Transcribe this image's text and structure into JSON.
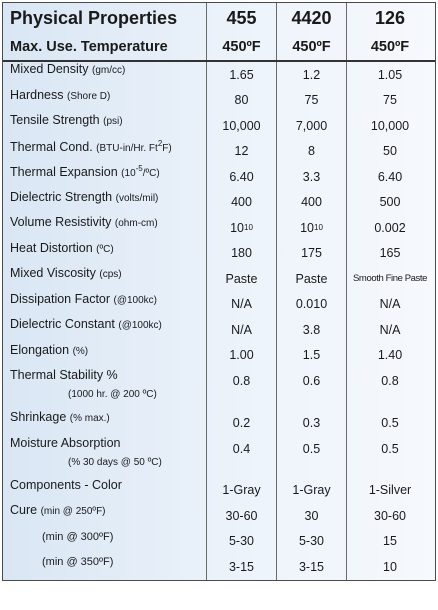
{
  "table": {
    "header": [
      [
        "Physical Properties",
        "455",
        "4420",
        "126"
      ],
      [
        "Max. Use. Temperature",
        "450ºF",
        "450ºF",
        "450ºF"
      ]
    ],
    "rows": [
      {
        "label": [
          {
            "text": "Mixed Density ",
            "style": "main"
          },
          {
            "text": "(gm/cc)",
            "style": "small"
          }
        ],
        "values": [
          "1.65",
          "1.2",
          "1.05"
        ]
      },
      {
        "label": [
          {
            "text": "Hardness ",
            "style": "main"
          },
          {
            "text": "(Shore D)",
            "style": "small"
          }
        ],
        "values": [
          "80",
          "75",
          "75"
        ]
      },
      {
        "label": [
          {
            "text": "Tensile Strength ",
            "style": "main"
          },
          {
            "text": "(psi)",
            "style": "small"
          }
        ],
        "values": [
          "10,000",
          "7,000",
          "10,000"
        ]
      },
      {
        "label": [
          {
            "text": "Thermal Cond. ",
            "style": "main"
          },
          {
            "text": "(BTU-in/Hr. Ft",
            "style": "small"
          },
          {
            "text": "2",
            "style": "sup"
          },
          {
            "text": "F)",
            "style": "small"
          }
        ],
        "values": [
          "12",
          "8",
          "50"
        ]
      },
      {
        "label": [
          {
            "text": "Thermal Expansion ",
            "style": "main"
          },
          {
            "text": "(10",
            "style": "small"
          },
          {
            "text": "-5",
            "style": "sup"
          },
          {
            "text": "/ºC)",
            "style": "small"
          }
        ],
        "values": [
          "6.40",
          "3.3",
          "6.40"
        ]
      },
      {
        "label": [
          {
            "text": "Dielectric Strength ",
            "style": "main"
          },
          {
            "text": "(volts/mil)",
            "style": "small"
          }
        ],
        "values": [
          "400",
          "400",
          "500"
        ]
      },
      {
        "label": [
          {
            "text": "Volume Resistivity ",
            "style": "main"
          },
          {
            "text": "(ohm-cm)",
            "style": "small"
          }
        ],
        "values": [
          [
            {
              "text": "10",
              "style": "main"
            },
            {
              "text": "10",
              "style": "sup"
            }
          ],
          [
            {
              "text": "10",
              "style": "main"
            },
            {
              "text": "10",
              "style": "sup"
            }
          ],
          "0.002"
        ]
      },
      {
        "label": [
          {
            "text": "Heat Distortion ",
            "style": "main"
          },
          {
            "text": "(ºC)",
            "style": "small"
          }
        ],
        "values": [
          "180",
          "175",
          "165"
        ]
      },
      {
        "label": [
          {
            "text": "Mixed Viscosity ",
            "style": "main"
          },
          {
            "text": "(cps)",
            "style": "small"
          }
        ],
        "values": [
          "Paste",
          "Paste",
          [
            {
              "text": "Smooth Fine Paste",
              "style": "tight"
            }
          ]
        ]
      },
      {
        "label": [
          {
            "text": "Dissipation Factor ",
            "style": "main"
          },
          {
            "text": "(@100kc)",
            "style": "small"
          }
        ],
        "values": [
          "N/A",
          "0.010",
          "N/A"
        ]
      },
      {
        "label": [
          {
            "text": "Dielectric Constant ",
            "style": "main"
          },
          {
            "text": "(@100kc)",
            "style": "small"
          }
        ],
        "values": [
          "N/A",
          "3.8",
          "N/A"
        ]
      },
      {
        "label": [
          {
            "text": "Elongation ",
            "style": "main"
          },
          {
            "text": "(%)",
            "style": "small"
          }
        ],
        "values": [
          "1.00",
          "1.5",
          "1.40"
        ]
      },
      {
        "label": [
          {
            "text": "Thermal Stability %",
            "style": "main"
          }
        ],
        "sublabel": [
          {
            "text": "(1000 hr. @ 200 ºC)",
            "style": "small"
          }
        ],
        "values": [
          "0.8",
          "0.6",
          "0.8"
        ]
      },
      {
        "label": [
          {
            "text": "Shrinkage ",
            "style": "main"
          },
          {
            "text": "(% max.)",
            "style": "small"
          }
        ],
        "values": [
          "0.2",
          "0.3",
          "0.5"
        ]
      },
      {
        "label": [
          {
            "text": "Moisture Absorption",
            "style": "main"
          }
        ],
        "sublabel": [
          {
            "text": "(% 30 days @ 50 ºC)",
            "style": "small"
          }
        ],
        "values": [
          "0.4",
          "0.5",
          "0.5"
        ]
      },
      {
        "label": [
          {
            "text": "Components - Color",
            "style": "main"
          }
        ],
        "values": [
          "1-Gray",
          "1-Gray",
          "1-Silver"
        ]
      },
      {
        "label": [
          {
            "text": "Cure ",
            "style": "main"
          },
          {
            "text": "(min @ 250ºF)",
            "style": "small"
          }
        ],
        "values": [
          "30-60",
          "30",
          "30-60"
        ]
      },
      {
        "label": [
          {
            "text": "(min @ 300ºF)",
            "style": "indent"
          }
        ],
        "values": [
          "5-30",
          "5-30",
          "15"
        ]
      },
      {
        "label": [
          {
            "text": "(min @ 350ºF)",
            "style": "indent"
          }
        ],
        "values": [
          "3-15",
          "3-15",
          "10"
        ]
      }
    ]
  }
}
